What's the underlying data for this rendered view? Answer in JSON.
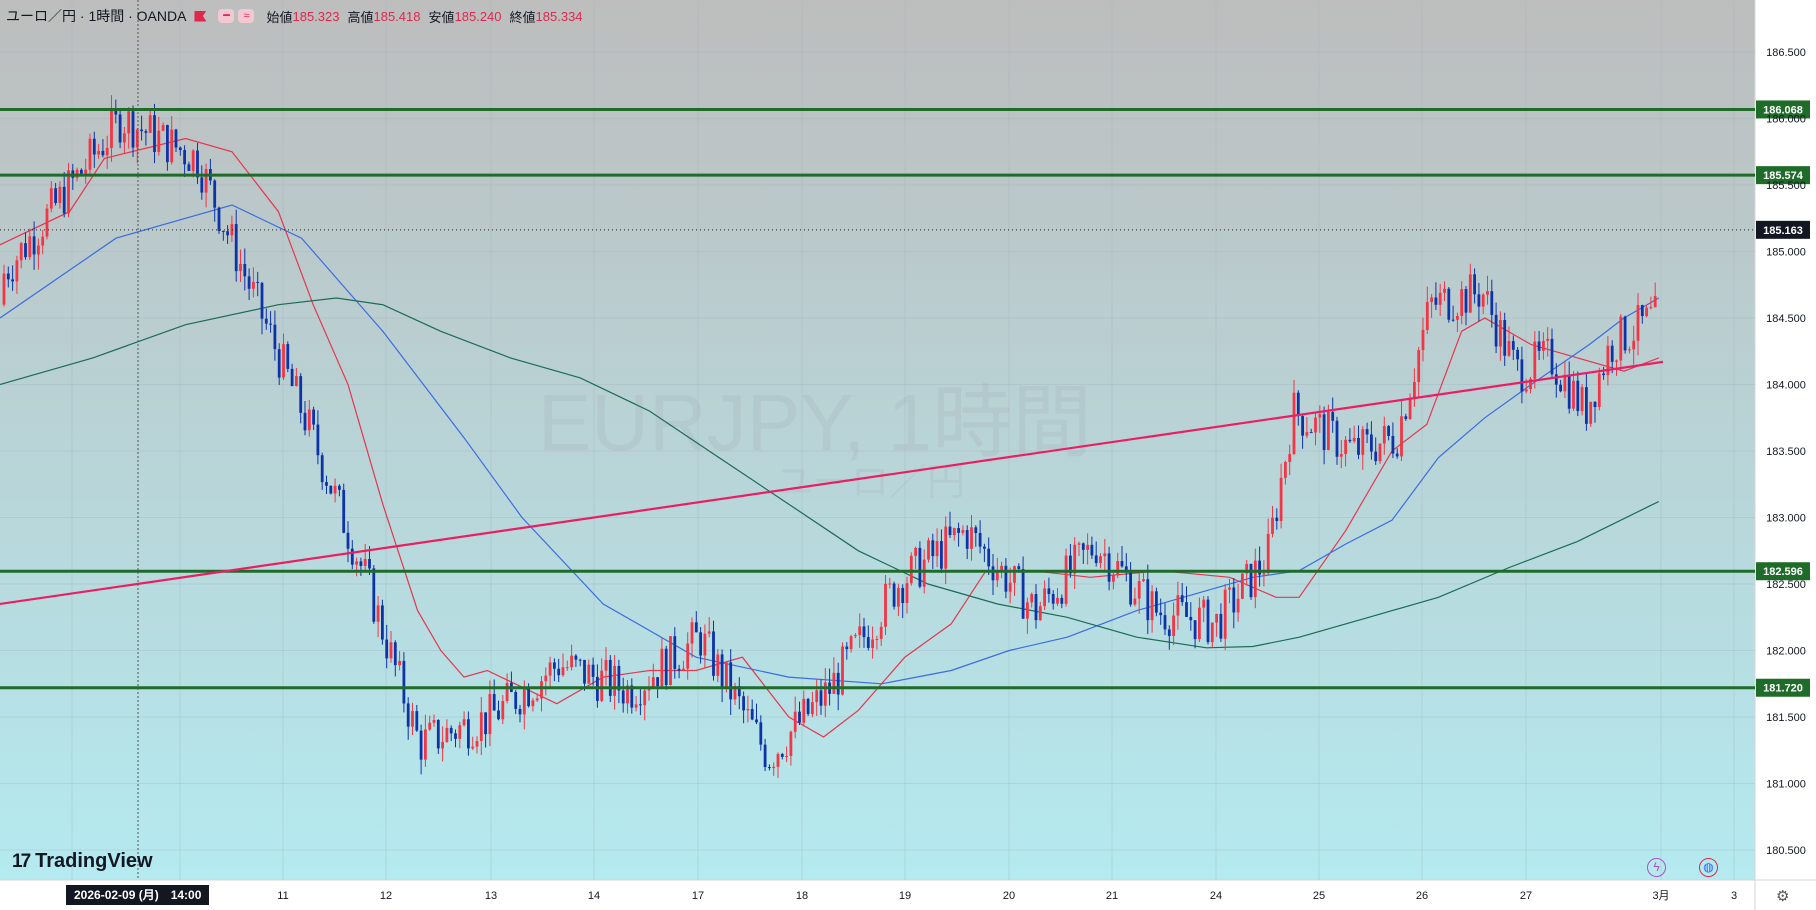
{
  "header": {
    "symbol": "ユーロ／円 · 1時間 · OANDA",
    "pill_1": "━",
    "pill_2": "≈",
    "open_label": "始値",
    "open": "185.323",
    "high_label": "高値",
    "high": "185.418",
    "low_label": "安値",
    "low": "185.240",
    "close_label": "終値",
    "close": "185.334"
  },
  "watermark": {
    "main": "EURJPY, 1時間",
    "sub": "ユーロ／円"
  },
  "branding": {
    "logo_mark": "17",
    "logo_text": "TradingView"
  },
  "crosshair": {
    "date_label": "2026-02-09 (月)　14:00"
  },
  "icons": [
    "lightning-icon",
    "globe-icon",
    "gear-icon"
  ],
  "colors": {
    "bull": "#f23645",
    "bear": "#0c34a8",
    "horizontal_level": "#1f6b2a",
    "trendline": "#e91e63",
    "ma_short": "#e4364f",
    "ma_mid": "#3b6ce0",
    "ma_long": "#1b6b55",
    "bg_top": "#bdbdbd",
    "bg_bottom": "#b4eaf0"
  },
  "chart_data": {
    "type": "candlestick",
    "symbol": "EURJPY",
    "timeframe": "1時間",
    "x_labels": [
      "11",
      "12",
      "13",
      "14",
      "17",
      "18",
      "19",
      "20",
      "21",
      "24",
      "25",
      "26",
      "27",
      "3月",
      "3"
    ],
    "y_ticks": [
      "186.500",
      "186.000",
      "185.500",
      "185.000",
      "184.500",
      "184.000",
      "183.500",
      "183.000",
      "182.500",
      "182.000",
      "181.500",
      "181.000",
      "180.500"
    ],
    "ylim": [
      180.3,
      186.85
    ],
    "ohlc": {
      "open": 185.323,
      "high": 185.418,
      "low": 185.24,
      "close": 185.334
    },
    "current_price": {
      "label": "185.163",
      "value": 185.163
    },
    "horizontal_levels": [
      {
        "label": "186.068",
        "value": 186.068
      },
      {
        "label": "185.574",
        "value": 185.574
      },
      {
        "label": "182.596",
        "value": 182.596
      },
      {
        "label": "181.720",
        "value": 181.72
      }
    ],
    "trendline": {
      "start": {
        "date": "2026-02-06",
        "price": 182.35
      },
      "end": {
        "date": "2026-02-27",
        "price": 184.17
      }
    },
    "close_path": [
      {
        "date": "02-06",
        "close": 184.6
      },
      {
        "date": "02-09 12:00",
        "close": 186.0
      },
      {
        "date": "02-10 04:00",
        "close": 185.7
      },
      {
        "date": "02-10 18:00",
        "close": 184.6
      },
      {
        "date": "02-11 06:00",
        "close": 183.7
      },
      {
        "date": "02-11 20:00",
        "close": 182.5
      },
      {
        "date": "02-12 08:00",
        "close": 181.3
      },
      {
        "date": "02-13 00:00",
        "close": 181.5
      },
      {
        "date": "02-13 16:00",
        "close": 181.9
      },
      {
        "date": "02-16 08:00",
        "close": 181.7
      },
      {
        "date": "02-17 00:00",
        "close": 182.1
      },
      {
        "date": "02-17 16:00",
        "close": 181.2
      },
      {
        "date": "02-18 06:00",
        "close": 181.7
      },
      {
        "date": "02-18 22:00",
        "close": 182.5
      },
      {
        "date": "02-19 14:00",
        "close": 182.9
      },
      {
        "date": "02-20 06:00",
        "close": 182.3
      },
      {
        "date": "02-20 20:00",
        "close": 182.8
      },
      {
        "date": "02-23 10:00",
        "close": 182.3
      },
      {
        "date": "02-24 00:00",
        "close": 182.2
      },
      {
        "date": "02-24 12:00",
        "close": 182.7
      },
      {
        "date": "02-24 18:00",
        "close": 183.8
      },
      {
        "date": "02-25 08:00",
        "close": 183.5
      },
      {
        "date": "02-25 18:00",
        "close": 183.6
      },
      {
        "date": "02-26 02:00",
        "close": 184.6
      },
      {
        "date": "02-26 14:00",
        "close": 184.7
      },
      {
        "date": "02-26 22:00",
        "close": 184.1
      },
      {
        "date": "02-27 06:00",
        "close": 184.2
      },
      {
        "date": "02-27 14:00",
        "close": 183.8
      },
      {
        "date": "02-27 20:00",
        "close": 184.3
      },
      {
        "date": "02-28 06:00",
        "close": 184.5
      }
    ],
    "moving_averages": [
      {
        "name": "",
        "color": "#e4364f",
        "points": [
          [
            0,
            185.05
          ],
          [
            60,
            185.3
          ],
          [
            90,
            185.7
          ],
          [
            160,
            185.85
          ],
          [
            200,
            185.75
          ],
          [
            240,
            185.3
          ],
          [
            270,
            184.6
          ],
          [
            300,
            184.0
          ],
          [
            330,
            183.1
          ],
          [
            360,
            182.3
          ],
          [
            380,
            182.0
          ],
          [
            400,
            181.8
          ],
          [
            420,
            181.85
          ],
          [
            480,
            181.6
          ],
          [
            520,
            181.8
          ],
          [
            560,
            181.85
          ],
          [
            600,
            181.85
          ],
          [
            640,
            181.95
          ],
          [
            680,
            181.5
          ],
          [
            710,
            181.35
          ],
          [
            740,
            181.55
          ],
          [
            780,
            181.95
          ],
          [
            820,
            182.2
          ],
          [
            850,
            182.6
          ],
          [
            890,
            182.6
          ],
          [
            940,
            182.55
          ],
          [
            1000,
            182.6
          ],
          [
            1060,
            182.55
          ],
          [
            1100,
            182.4
          ],
          [
            1120,
            182.4
          ],
          [
            1160,
            182.9
          ],
          [
            1200,
            183.5
          ],
          [
            1230,
            183.7
          ],
          [
            1260,
            184.4
          ],
          [
            1280,
            184.5
          ],
          [
            1320,
            184.3
          ],
          [
            1360,
            184.2
          ],
          [
            1400,
            184.1
          ],
          [
            1430,
            184.2
          ]
        ]
      },
      {
        "name": "",
        "color": "#3b6ce0",
        "points": [
          [
            0,
            184.5
          ],
          [
            100,
            185.1
          ],
          [
            200,
            185.35
          ],
          [
            260,
            185.1
          ],
          [
            330,
            184.4
          ],
          [
            400,
            183.6
          ],
          [
            450,
            183.0
          ],
          [
            520,
            182.35
          ],
          [
            600,
            181.95
          ],
          [
            680,
            181.8
          ],
          [
            760,
            181.75
          ],
          [
            820,
            181.85
          ],
          [
            870,
            182.0
          ],
          [
            920,
            182.1
          ],
          [
            980,
            182.3
          ],
          [
            1040,
            182.45
          ],
          [
            1080,
            182.55
          ],
          [
            1120,
            182.6
          ],
          [
            1160,
            182.8
          ],
          [
            1200,
            182.98
          ],
          [
            1240,
            183.45
          ],
          [
            1280,
            183.75
          ],
          [
            1320,
            184.0
          ],
          [
            1370,
            184.3
          ],
          [
            1400,
            184.5
          ],
          [
            1430,
            184.65
          ]
        ]
      },
      {
        "name": "",
        "color": "#1b6b55",
        "points": [
          [
            0,
            184.0
          ],
          [
            80,
            184.2
          ],
          [
            160,
            184.45
          ],
          [
            240,
            184.6
          ],
          [
            290,
            184.65
          ],
          [
            330,
            184.6
          ],
          [
            380,
            184.4
          ],
          [
            440,
            184.2
          ],
          [
            500,
            184.05
          ],
          [
            560,
            183.8
          ],
          [
            620,
            183.45
          ],
          [
            680,
            183.1
          ],
          [
            740,
            182.75
          ],
          [
            800,
            182.5
          ],
          [
            860,
            182.35
          ],
          [
            920,
            182.25
          ],
          [
            980,
            182.1
          ],
          [
            1040,
            182.02
          ],
          [
            1080,
            182.03
          ],
          [
            1120,
            182.1
          ],
          [
            1180,
            182.25
          ],
          [
            1240,
            182.4
          ],
          [
            1300,
            182.62
          ],
          [
            1360,
            182.82
          ],
          [
            1430,
            183.12
          ]
        ]
      }
    ]
  }
}
